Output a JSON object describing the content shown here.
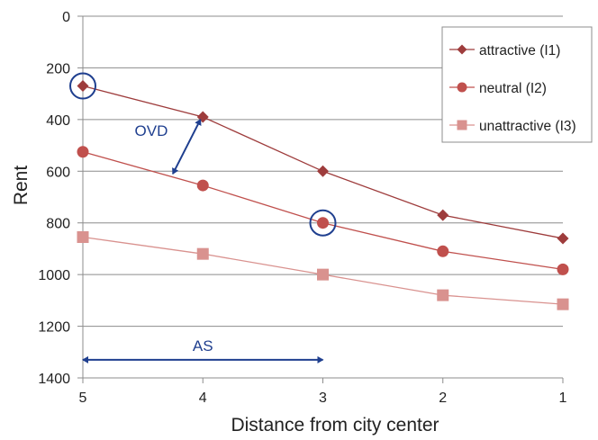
{
  "chart_data": {
    "type": "line",
    "xlabel": "Distance from city center",
    "ylabel": "Rent",
    "x": [
      5,
      4,
      3,
      2,
      1
    ],
    "x_tick_labels": [
      "5",
      "4",
      "3",
      "2",
      "1"
    ],
    "y_tick_labels": [
      "0",
      "200",
      "400",
      "600",
      "800",
      "1000",
      "1200",
      "1400"
    ],
    "ylim": [
      0,
      1400
    ],
    "y_reversed": true,
    "grid": true,
    "legend_position": "top-right",
    "series": [
      {
        "name": "attractive (I1)",
        "values": [
          270,
          390,
          600,
          770,
          860
        ],
        "color": "#9e3c3c",
        "marker": "diamond"
      },
      {
        "name": "neutral (I2)",
        "values": [
          525,
          655,
          800,
          910,
          980
        ],
        "color": "#c0504d",
        "marker": "circle"
      },
      {
        "name": "unattractive (I3)",
        "values": [
          855,
          920,
          1000,
          1080,
          1115
        ],
        "color": "#d9928f",
        "marker": "square"
      }
    ],
    "annotations": [
      {
        "text": "OVD",
        "kind": "double-arrow",
        "from": {
          "x": 4.25,
          "y": 610
        },
        "to": {
          "x": 4.02,
          "y": 400
        }
      },
      {
        "text": "AS",
        "kind": "double-arrow",
        "from": {
          "x": 5,
          "y": 1330
        },
        "to": {
          "x": 3,
          "y": 1330
        }
      }
    ],
    "highlights": [
      {
        "series": "attractive (I1)",
        "x": 5,
        "y": 270
      },
      {
        "series": "neutral (I2)",
        "x": 3,
        "y": 800
      }
    ],
    "annotation_color": "#1f3f8f"
  }
}
